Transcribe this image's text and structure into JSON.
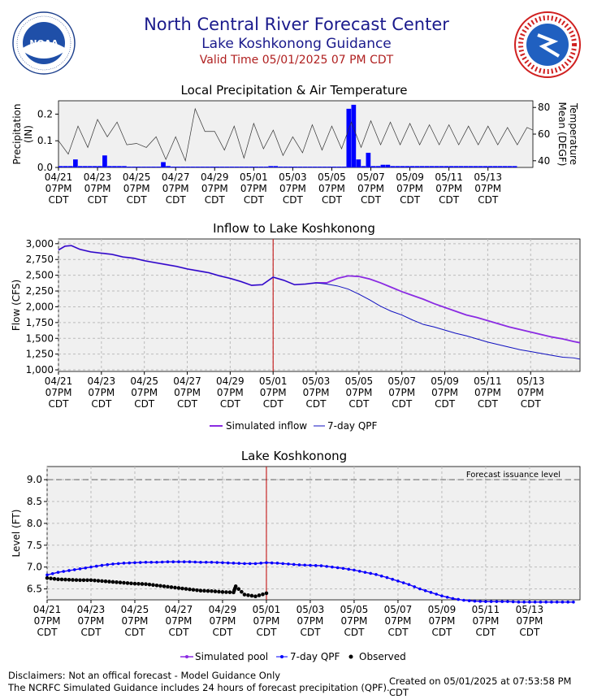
{
  "header": {
    "title": "North Central River Forecast Center",
    "subtitle": "Lake Koshkonong Guidance",
    "valid_time": "Valid Time 05/01/2025 07 PM CDT",
    "left_logo_text": "NOAA",
    "left_logo_ring": "NATIONAL OCEANIC AND ATMOSPHERIC ADMINISTRATION · U.S. DEPARTMENT OF COMMERCE",
    "right_logo_ring": "NATIONAL WEATHER SERVICE"
  },
  "x_ticks": [
    "04/21",
    "04/23",
    "04/25",
    "04/27",
    "04/29",
    "05/01",
    "05/03",
    "05/05",
    "05/07",
    "05/09",
    "05/11",
    "05/13"
  ],
  "x_tick_line2": "07PM",
  "x_tick_line3": "CDT",
  "chart_data": [
    {
      "type": "bar",
      "title": "Local Precipitation & Air Temperature",
      "ylabel": "Precipitation (IN)",
      "y2label": "Temperature Mean (DEGF)",
      "xlim": [
        0,
        24.3
      ],
      "ylim": [
        0,
        0.25
      ],
      "y_ticks": [
        "0.0",
        "0.1",
        "0.2"
      ],
      "y2lim": [
        35,
        85
      ],
      "y2_ticks": [
        "40",
        "60",
        "80"
      ],
      "bar_color": "#0000ff",
      "precip_days": [
        0.0,
        0.25,
        0.5,
        0.75,
        1.0,
        1.25,
        1.5,
        1.75,
        2.0,
        2.25,
        2.5,
        2.75,
        3.0,
        3.25,
        3.5,
        3.75,
        4.0,
        4.25,
        4.5,
        4.75,
        5.0,
        5.25,
        5.5,
        5.75,
        6.0,
        6.25,
        6.5,
        6.75,
        7.0,
        7.25,
        7.5,
        7.75,
        8.0,
        8.25,
        8.5,
        8.75,
        9.0,
        9.25,
        9.5,
        9.75,
        10.0,
        10.25,
        10.5,
        10.75,
        11.0,
        11.25,
        11.5,
        11.75,
        12.0,
        12.25,
        12.5,
        12.75,
        13.0,
        13.25,
        13.5,
        13.75,
        14.0,
        14.25,
        14.5,
        14.75,
        15.0,
        15.25,
        15.5,
        15.75,
        16.0,
        16.25,
        16.5,
        16.75,
        17.0,
        17.25,
        17.5,
        17.75,
        18.0,
        18.25,
        18.5,
        18.75,
        19.0,
        19.25,
        19.5,
        19.75,
        20.0,
        20.25,
        20.5,
        20.75,
        21.0,
        21.25,
        21.5,
        21.75,
        22.0,
        22.25,
        22.5,
        22.75,
        23.0,
        23.25
      ],
      "precip_in": [
        0.005,
        0.005,
        0.005,
        0.03,
        0.005,
        0.005,
        0.005,
        0.005,
        0.005,
        0.045,
        0.005,
        0.005,
        0.005,
        0.005,
        0.003,
        0.003,
        0.003,
        0.003,
        0.003,
        0.003,
        0.003,
        0.02,
        0.005,
        0.003,
        0.003,
        0.003,
        0.003,
        0.003,
        0.003,
        0.003,
        0.003,
        0.003,
        0.003,
        0.003,
        0.003,
        0.003,
        0.003,
        0.003,
        0.003,
        0.003,
        0.003,
        0.003,
        0.003,
        0.005,
        0.005,
        0.003,
        0.003,
        0.003,
        0.003,
        0.003,
        0.003,
        0.003,
        0.003,
        0.003,
        0.003,
        0.003,
        0.003,
        0.003,
        0.003,
        0.22,
        0.235,
        0.03,
        0.005,
        0.055,
        0.005,
        0.005,
        0.01,
        0.01,
        0.005,
        0.005,
        0.005,
        0.005,
        0.005,
        0.005,
        0.005,
        0.005,
        0.005,
        0.005,
        0.005,
        0.005,
        0.005,
        0.005,
        0.005,
        0.005,
        0.005,
        0.005,
        0.005,
        0.005,
        0.005,
        0.005,
        0.005,
        0.005,
        0.005,
        0.005
      ],
      "temp_days": [
        0.0,
        0.5,
        1.0,
        1.5,
        2.0,
        2.5,
        3.0,
        3.5,
        4.0,
        4.5,
        5.0,
        5.5,
        6.0,
        6.5,
        7.0,
        7.5,
        8.0,
        8.5,
        9.0,
        9.5,
        10.0,
        10.5,
        11.0,
        11.5,
        12.0,
        12.5,
        13.0,
        13.5,
        14.0,
        14.5,
        15.0,
        15.5,
        16.0,
        16.5,
        17.0,
        17.5,
        18.0,
        18.5,
        19.0,
        19.5,
        20.0,
        20.5,
        21.0,
        21.5,
        22.0,
        22.5,
        23.0,
        23.5,
        24.0,
        24.3
      ],
      "temp_f": [
        55,
        45,
        66,
        50,
        71,
        58,
        69,
        52,
        53,
        50,
        58,
        41,
        58,
        40,
        79,
        62,
        62,
        48,
        66,
        42,
        68,
        49,
        63,
        44,
        58,
        46,
        67,
        48,
        66,
        49,
        69,
        50,
        70,
        52,
        69,
        52,
        68,
        52,
        67,
        52,
        67,
        52,
        66,
        52,
        66,
        52,
        65,
        52,
        65,
        63
      ]
    },
    {
      "type": "line",
      "title": "Inflow to Lake Koshkonong",
      "ylabel": "Flow (CFS)",
      "ylim": [
        975,
        3075
      ],
      "xlim": [
        0,
        24.3
      ],
      "y_ticks": [
        "3,000",
        "2,750",
        "2,500",
        "2,250",
        "2,000",
        "1,750",
        "1,500",
        "1,250",
        "1,000"
      ],
      "y_tick_values": [
        3000,
        2750,
        2500,
        2250,
        2000,
        1750,
        1500,
        1250,
        1000
      ],
      "valid_day": 10,
      "x_days": [
        0,
        0.3,
        0.6,
        1,
        1.5,
        2,
        2.5,
        3,
        3.5,
        4,
        4.5,
        5,
        5.5,
        6,
        6.5,
        7,
        7.5,
        8,
        8.5,
        9,
        9.5,
        10,
        10.5,
        11,
        11.5,
        12,
        12.5,
        13,
        13.5,
        14,
        14.5,
        15,
        15.5,
        16,
        16.5,
        17,
        17.5,
        18,
        18.5,
        19,
        19.5,
        20,
        20.5,
        21,
        21.5,
        22,
        22.5,
        23,
        23.5,
        24,
        24.3
      ],
      "series": [
        {
          "name": "Simulated inflow",
          "color": "#8a2be2",
          "values": [
            2900,
            2960,
            2970,
            2910,
            2870,
            2850,
            2830,
            2790,
            2770,
            2730,
            2700,
            2670,
            2640,
            2600,
            2570,
            2540,
            2490,
            2450,
            2400,
            2340,
            2350,
            2470,
            2420,
            2350,
            2360,
            2380,
            2380,
            2450,
            2490,
            2480,
            2440,
            2380,
            2310,
            2240,
            2180,
            2120,
            2050,
            1990,
            1930,
            1870,
            1830,
            1780,
            1730,
            1680,
            1640,
            1600,
            1560,
            1520,
            1490,
            1450,
            1430
          ]
        },
        {
          "name": "7-day QPF",
          "color": "#1010c0",
          "values": [
            2900,
            2960,
            2970,
            2910,
            2870,
            2850,
            2830,
            2790,
            2770,
            2730,
            2700,
            2670,
            2640,
            2600,
            2570,
            2540,
            2490,
            2450,
            2400,
            2340,
            2350,
            2470,
            2420,
            2350,
            2360,
            2380,
            2360,
            2330,
            2280,
            2200,
            2110,
            2010,
            1930,
            1870,
            1790,
            1720,
            1680,
            1630,
            1580,
            1540,
            1490,
            1440,
            1400,
            1360,
            1320,
            1290,
            1260,
            1230,
            1200,
            1190,
            1170
          ]
        }
      ],
      "legend": [
        "Simulated inflow",
        "7-day QPF"
      ]
    },
    {
      "type": "line",
      "title": "Lake Koshkonong",
      "ylabel": "Level (FT)",
      "ylim": [
        6.25,
        9.3
      ],
      "xlim": [
        0,
        24.3
      ],
      "y_ticks": [
        "9.0",
        "8.5",
        "8.0",
        "7.5",
        "7.0",
        "6.5"
      ],
      "y_tick_values": [
        9.0,
        8.5,
        8.0,
        7.5,
        7.0,
        6.5
      ],
      "forecast_issuance_level": 9.0,
      "forecast_issuance_label": "Forecast issuance level",
      "valid_day": 10,
      "x_days": [
        0,
        0.5,
        1,
        1.5,
        2,
        2.5,
        3,
        3.5,
        4,
        4.5,
        5,
        5.5,
        6,
        6.5,
        7,
        7.5,
        8,
        8.5,
        9,
        9.5,
        10,
        10.5,
        11,
        11.5,
        12,
        12.5,
        13,
        13.5,
        14,
        14.5,
        15,
        15.5,
        16,
        16.5,
        17,
        17.5,
        18,
        18.5,
        19,
        19.5,
        20,
        20.5,
        21,
        21.5,
        22,
        22.5,
        23,
        23.5,
        24
      ],
      "series": [
        {
          "name": "Simulated pool",
          "color": "#8a2be2",
          "values": [
            6.82,
            6.88,
            6.92,
            6.96,
            7.0,
            7.04,
            7.07,
            7.09,
            7.1,
            7.11,
            7.11,
            7.12,
            7.12,
            7.12,
            7.11,
            7.11,
            7.1,
            7.09,
            7.08,
            7.08,
            7.1,
            7.09,
            7.07,
            7.05,
            7.04,
            7.03,
            7.0,
            6.97,
            6.93,
            6.88,
            6.83,
            6.76,
            6.68,
            6.6,
            6.5,
            6.42,
            6.34,
            6.28,
            6.24,
            6.22,
            6.21,
            6.21,
            6.21,
            6.2,
            6.2,
            6.2,
            6.2,
            6.2,
            6.2
          ]
        },
        {
          "name": "7-day QPF",
          "color": "#0000ff",
          "values": [
            6.82,
            6.88,
            6.92,
            6.96,
            7.0,
            7.04,
            7.07,
            7.09,
            7.1,
            7.11,
            7.11,
            7.12,
            7.12,
            7.12,
            7.11,
            7.11,
            7.1,
            7.09,
            7.08,
            7.08,
            7.1,
            7.09,
            7.07,
            7.05,
            7.04,
            7.03,
            7.0,
            6.97,
            6.93,
            6.88,
            6.83,
            6.76,
            6.68,
            6.6,
            6.5,
            6.42,
            6.34,
            6.28,
            6.24,
            6.22,
            6.21,
            6.21,
            6.21,
            6.2,
            6.2,
            6.2,
            6.2,
            6.2,
            6.2
          ]
        },
        {
          "name": "Observed",
          "color": "#000000",
          "x_days": [
            0,
            0.5,
            1,
            1.5,
            2,
            2.5,
            3,
            3.5,
            4,
            4.5,
            5,
            5.5,
            6,
            6.5,
            7,
            7.5,
            8,
            8.5,
            8.6,
            9,
            9.5,
            10
          ],
          "values": [
            6.75,
            6.72,
            6.71,
            6.7,
            6.7,
            6.68,
            6.66,
            6.64,
            6.62,
            6.61,
            6.58,
            6.55,
            6.52,
            6.49,
            6.46,
            6.45,
            6.43,
            6.42,
            6.56,
            6.37,
            6.33,
            6.4
          ]
        }
      ],
      "legend": [
        "Simulated pool",
        "7-day QPF",
        "Observed"
      ]
    }
  ],
  "footer": {
    "disclaimer": "Disclaimers: Not an offical forecast - Model Guidance Only",
    "qpf_note": "The NCRFC Simulated Guidance includes 24 hours of forecast precipitation (QPF).",
    "created": "Created on 05/01/2025 at 07:53:58 PM CDT"
  }
}
